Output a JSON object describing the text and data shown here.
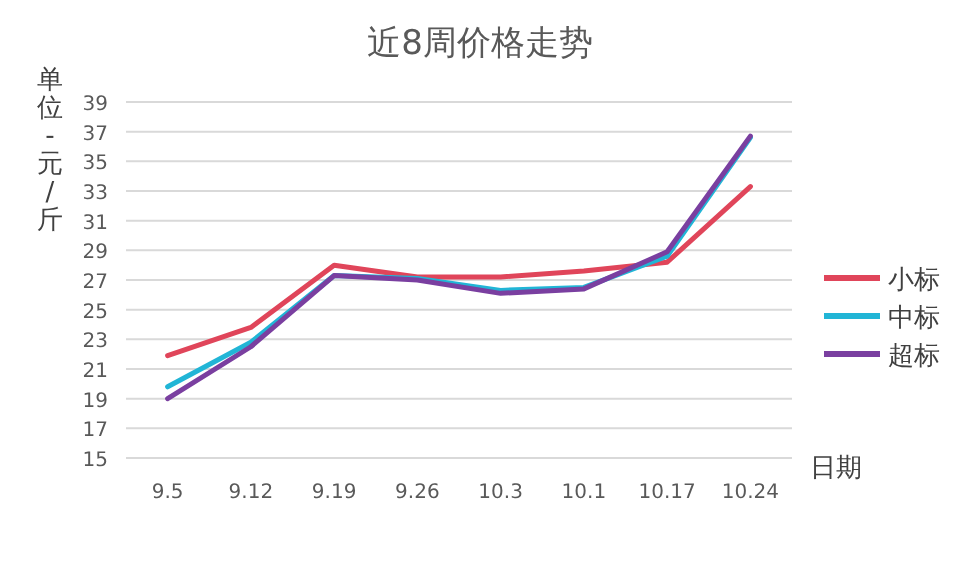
{
  "chart_data": {
    "type": "line",
    "title": "近8周价格走势",
    "ylabel": "单位-元/斤",
    "xlabel": "日期",
    "categories": [
      "9.5",
      "9.12",
      "9.19",
      "9.26",
      "10.3",
      "10.1",
      "10.17",
      "10.24"
    ],
    "ylim": [
      15,
      39
    ],
    "yticks": [
      15,
      17,
      19,
      21,
      23,
      25,
      27,
      29,
      31,
      33,
      35,
      37,
      39
    ],
    "grid": "y",
    "legend": "right",
    "marker": "none",
    "line_style": "solid",
    "series": [
      {
        "name": "小标",
        "color": "#e0455a",
        "values": [
          21.9,
          23.8,
          28.0,
          27.2,
          27.2,
          27.6,
          28.2,
          33.3
        ]
      },
      {
        "name": "中标",
        "color": "#21b5d6",
        "values": [
          19.8,
          22.8,
          27.3,
          27.1,
          26.3,
          26.5,
          28.6,
          36.6
        ]
      },
      {
        "name": "超标",
        "color": "#7a3fa0",
        "values": [
          19.0,
          22.5,
          27.3,
          27.0,
          26.1,
          26.4,
          28.9,
          36.7
        ]
      }
    ]
  }
}
